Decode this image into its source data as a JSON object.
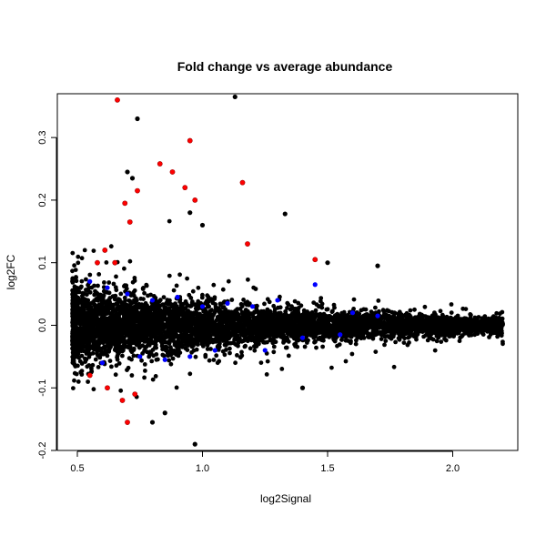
{
  "chart_data": {
    "type": "scatter",
    "title": "Fold change vs average abundance",
    "xlabel": "log2Signal",
    "ylabel": "log2FC",
    "xlim": [
      0.42,
      2.26
    ],
    "ylim": [
      -0.2,
      0.37
    ],
    "xticks": [
      0.5,
      1.0,
      1.5,
      2.0
    ],
    "xtick_labels": [
      "0.5",
      "1.0",
      "1.5",
      "2.0"
    ],
    "yticks": [
      -0.2,
      -0.1,
      0.0,
      0.1,
      0.2,
      0.3
    ],
    "ytick_labels": [
      "-0.2",
      "-0.1",
      "0.0",
      "0.1",
      "0.2",
      "0.3"
    ],
    "grid": false,
    "legend": "none",
    "colors": {
      "default": "#000000",
      "blue": "#0000ff",
      "red": "#ff0000"
    },
    "series": [
      {
        "color": "red",
        "x": [
          0.66,
          0.95,
          1.16,
          0.83,
          0.88,
          0.93,
          0.74,
          0.69,
          0.71,
          0.97,
          1.18,
          1.45,
          0.61,
          0.65,
          0.58,
          0.68,
          0.7,
          0.55,
          0.62,
          0.73
        ],
        "y": [
          0.36,
          0.295,
          0.228,
          0.258,
          0.245,
          0.22,
          0.215,
          0.195,
          0.165,
          0.2,
          0.13,
          0.105,
          0.12,
          0.1,
          0.1,
          -0.12,
          -0.155,
          -0.08,
          -0.1,
          -0.11
        ]
      },
      {
        "color": "blue",
        "x": [
          0.55,
          0.62,
          0.7,
          0.8,
          0.9,
          1.0,
          1.1,
          1.2,
          1.3,
          1.45,
          1.6,
          1.7,
          0.6,
          0.75,
          0.85,
          0.95,
          1.05,
          1.25,
          1.4,
          1.55
        ],
        "y": [
          0.07,
          0.06,
          0.05,
          0.04,
          0.045,
          0.03,
          0.035,
          0.03,
          0.04,
          0.065,
          0.02,
          0.015,
          -0.06,
          -0.05,
          -0.055,
          -0.05,
          -0.04,
          -0.04,
          -0.02,
          -0.015
        ]
      },
      {
        "color": "default",
        "x": [
          1.13,
          0.74,
          0.7,
          0.72,
          0.95,
          1.33,
          1.0,
          1.5,
          1.7,
          0.97,
          0.8,
          0.85,
          1.4
        ],
        "y": [
          0.365,
          0.33,
          0.245,
          0.235,
          0.18,
          0.178,
          0.16,
          0.1,
          0.095,
          -0.19,
          -0.155,
          -0.14,
          -0.1
        ]
      }
    ]
  }
}
